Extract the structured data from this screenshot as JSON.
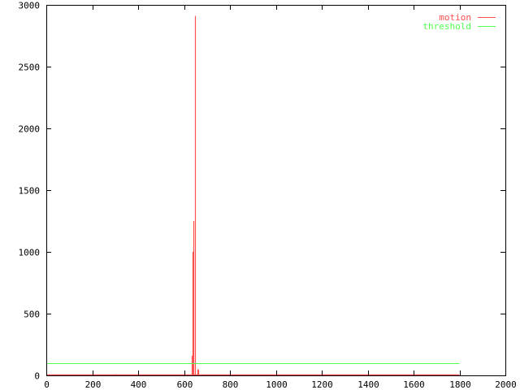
{
  "chart_data": {
    "type": "line",
    "title": "",
    "xlabel": "",
    "ylabel": "",
    "xlim": [
      0,
      2000
    ],
    "ylim": [
      0,
      3000
    ],
    "xticks": [
      0,
      200,
      400,
      600,
      800,
      1000,
      1200,
      1400,
      1600,
      1800,
      2000
    ],
    "yticks": [
      0,
      500,
      1000,
      1500,
      2000,
      2500,
      3000
    ],
    "grid": false,
    "legend_position": "top-right",
    "series": [
      {
        "name": "motion",
        "color": "#ff5050",
        "style": "impulses",
        "baseline_range": [
          0,
          1800
        ],
        "points": [
          [
            300,
            10
          ],
          [
            634,
            160
          ],
          [
            637,
            1000
          ],
          [
            641,
            1250
          ],
          [
            648,
            2910
          ],
          [
            658,
            50
          ],
          [
            662,
            45
          ]
        ]
      },
      {
        "name": "threshold",
        "color": "#50ff50",
        "style": "line",
        "points": [
          [
            0,
            100
          ],
          [
            1800,
            100
          ]
        ]
      }
    ]
  }
}
